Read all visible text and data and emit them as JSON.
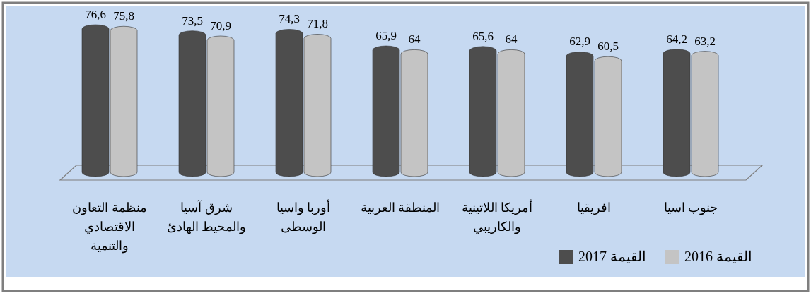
{
  "chart_data": {
    "type": "bar",
    "categories": [
      "منظمة التعاون\nالاقتصادي\nوالتنمية",
      "شرق آسيا\nوالمحيط الهادئ",
      "أوربا واسيا\nالوسطى",
      "المنطقة العربية",
      "أمريكا اللاتينية\nوالكاريبي",
      "افريقيا",
      "جنوب اسيا"
    ],
    "series": [
      {
        "name": "القيمة 2017",
        "color": "#4d4d4d",
        "values": [
          76.6,
          73.5,
          74.3,
          65.9,
          65.6,
          62.9,
          64.2
        ],
        "value_labels": [
          "76,6",
          "73,5",
          "74,3",
          "65,9",
          "65,6",
          "62,9",
          "64,2"
        ]
      },
      {
        "name": "القيمة 2016",
        "color": "#c4c4c4",
        "values": [
          75.8,
          70.9,
          71.8,
          64,
          64,
          60.5,
          63.2
        ],
        "value_labels": [
          "75,8",
          "70,9",
          "71,8",
          "64",
          "64",
          "60,5",
          "63,2"
        ]
      }
    ],
    "legend": "bottom right"
  }
}
